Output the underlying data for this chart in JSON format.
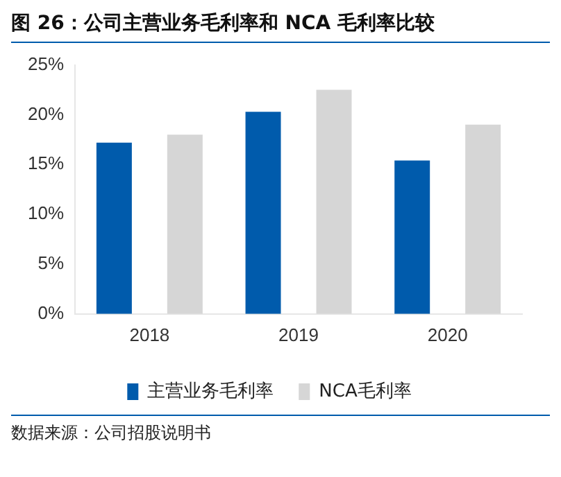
{
  "chart_data": {
    "type": "bar",
    "title": "图 26：公司主营业务毛利率和 NCA 毛利率比较",
    "categories": [
      "2018",
      "2019",
      "2020"
    ],
    "series": [
      {
        "name": "主营业务毛利率",
        "color": "#005bac",
        "values": [
          17.2,
          20.3,
          15.4
        ]
      },
      {
        "name": "NCA毛利率",
        "color": "#d6d6d6",
        "values": [
          18.0,
          22.5,
          19.0
        ]
      }
    ],
    "ylim": [
      0,
      25
    ],
    "yticks": [
      {
        "value": 0,
        "label": "0%"
      },
      {
        "value": 5,
        "label": "5%"
      },
      {
        "value": 10,
        "label": "10%"
      },
      {
        "value": 15,
        "label": "15%"
      },
      {
        "value": 20,
        "label": "20%"
      },
      {
        "value": 25,
        "label": "25%"
      }
    ],
    "grid": false,
    "legend": "bottom",
    "annotations": [
      "数据来源：公司招股说明书"
    ]
  }
}
